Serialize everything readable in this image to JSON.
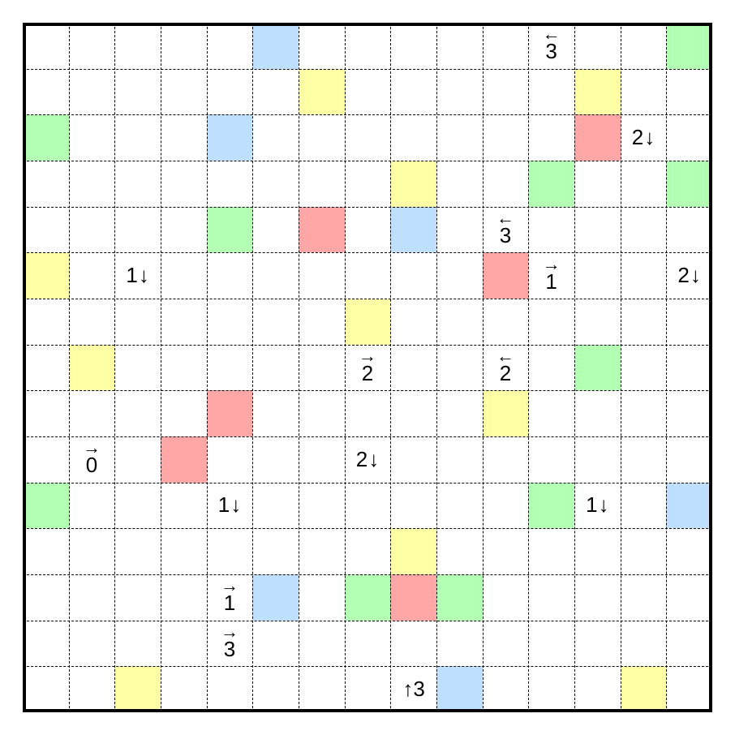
{
  "puzzle": {
    "rows": 15,
    "cols": 15,
    "colors": {
      "blue": "#bfdfff",
      "green": "#b3ffb3",
      "yellow": "#ffffa6",
      "red": "#ffa6a6"
    },
    "shaded_cells": [
      {
        "r": 0,
        "c": 5,
        "color": "blue"
      },
      {
        "r": 0,
        "c": 14,
        "color": "green"
      },
      {
        "r": 1,
        "c": 6,
        "color": "yellow"
      },
      {
        "r": 1,
        "c": 12,
        "color": "yellow"
      },
      {
        "r": 2,
        "c": 0,
        "color": "green"
      },
      {
        "r": 2,
        "c": 4,
        "color": "blue"
      },
      {
        "r": 2,
        "c": 12,
        "color": "red"
      },
      {
        "r": 3,
        "c": 8,
        "color": "yellow"
      },
      {
        "r": 3,
        "c": 11,
        "color": "green"
      },
      {
        "r": 3,
        "c": 14,
        "color": "green"
      },
      {
        "r": 4,
        "c": 4,
        "color": "green"
      },
      {
        "r": 4,
        "c": 6,
        "color": "red"
      },
      {
        "r": 4,
        "c": 8,
        "color": "blue"
      },
      {
        "r": 5,
        "c": 0,
        "color": "yellow"
      },
      {
        "r": 5,
        "c": 10,
        "color": "red"
      },
      {
        "r": 6,
        "c": 7,
        "color": "yellow"
      },
      {
        "r": 7,
        "c": 1,
        "color": "yellow"
      },
      {
        "r": 7,
        "c": 12,
        "color": "green"
      },
      {
        "r": 8,
        "c": 4,
        "color": "red"
      },
      {
        "r": 8,
        "c": 10,
        "color": "yellow"
      },
      {
        "r": 9,
        "c": 3,
        "color": "red"
      },
      {
        "r": 10,
        "c": 0,
        "color": "green"
      },
      {
        "r": 10,
        "c": 11,
        "color": "green"
      },
      {
        "r": 10,
        "c": 14,
        "color": "blue"
      },
      {
        "r": 11,
        "c": 8,
        "color": "yellow"
      },
      {
        "r": 12,
        "c": 5,
        "color": "blue"
      },
      {
        "r": 12,
        "c": 7,
        "color": "green"
      },
      {
        "r": 12,
        "c": 8,
        "color": "red"
      },
      {
        "r": 12,
        "c": 9,
        "color": "green"
      },
      {
        "r": 14,
        "c": 2,
        "color": "yellow"
      },
      {
        "r": 14,
        "c": 9,
        "color": "blue"
      },
      {
        "r": 14,
        "c": 13,
        "color": "yellow"
      }
    ],
    "clues": [
      {
        "r": 0,
        "c": 11,
        "value": "3",
        "direction": "left"
      },
      {
        "r": 2,
        "c": 13,
        "value": "2",
        "direction": "down"
      },
      {
        "r": 4,
        "c": 10,
        "value": "3",
        "direction": "left"
      },
      {
        "r": 5,
        "c": 2,
        "value": "1",
        "direction": "down"
      },
      {
        "r": 5,
        "c": 11,
        "value": "1",
        "direction": "right"
      },
      {
        "r": 5,
        "c": 14,
        "value": "2",
        "direction": "down"
      },
      {
        "r": 7,
        "c": 7,
        "value": "2",
        "direction": "right"
      },
      {
        "r": 7,
        "c": 10,
        "value": "2",
        "direction": "left"
      },
      {
        "r": 9,
        "c": 1,
        "value": "0",
        "direction": "right"
      },
      {
        "r": 9,
        "c": 7,
        "value": "2",
        "direction": "down"
      },
      {
        "r": 10,
        "c": 4,
        "value": "1",
        "direction": "down"
      },
      {
        "r": 10,
        "c": 12,
        "value": "1",
        "direction": "down"
      },
      {
        "r": 12,
        "c": 4,
        "value": "1",
        "direction": "right"
      },
      {
        "r": 13,
        "c": 4,
        "value": "3",
        "direction": "right"
      },
      {
        "r": 14,
        "c": 8,
        "value": "3",
        "direction": "up"
      }
    ]
  }
}
